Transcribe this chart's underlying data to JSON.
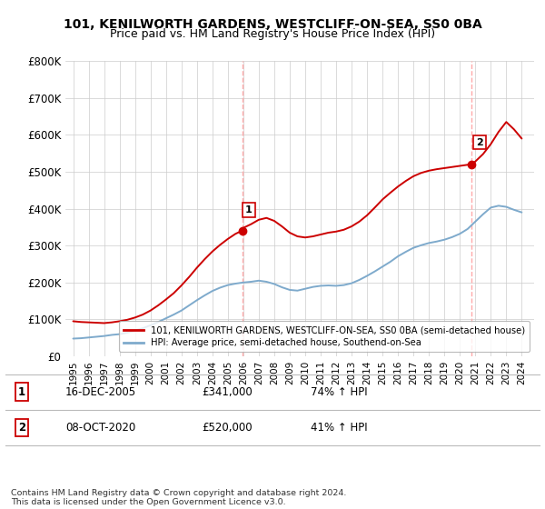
{
  "title": "101, KENILWORTH GARDENS, WESTCLIFF-ON-SEA, SS0 0BA",
  "subtitle": "Price paid vs. HM Land Registry's House Price Index (HPI)",
  "legend_line1": "101, KENILWORTH GARDENS, WESTCLIFF-ON-SEA, SS0 0BA (semi-detached house)",
  "legend_line2": "HPI: Average price, semi-detached house, Southend-on-Sea",
  "footnote": "Contains HM Land Registry data © Crown copyright and database right 2024.\nThis data is licensed under the Open Government Licence v3.0.",
  "annotation1_date": "16-DEC-2005",
  "annotation1_price": "£341,000",
  "annotation1_hpi": "74% ↑ HPI",
  "annotation2_date": "08-OCT-2020",
  "annotation2_price": "£520,000",
  "annotation2_hpi": "41% ↑ HPI",
  "red_color": "#cc0000",
  "blue_color": "#7eaacc",
  "vline_color": "#ffaaaa",
  "grid_color": "#cccccc",
  "ylim": [
    0,
    800000
  ],
  "yticks": [
    0,
    100000,
    200000,
    300000,
    400000,
    500000,
    600000,
    700000,
    800000
  ],
  "ytick_labels": [
    "£0",
    "£100K",
    "£200K",
    "£300K",
    "£400K",
    "£500K",
    "£600K",
    "£700K",
    "£800K"
  ],
  "hpi_x": [
    1995.0,
    1995.5,
    1996.0,
    1996.5,
    1997.0,
    1997.5,
    1998.0,
    1998.5,
    1999.0,
    1999.5,
    2000.0,
    2000.5,
    2001.0,
    2001.5,
    2002.0,
    2002.5,
    2003.0,
    2003.5,
    2004.0,
    2004.5,
    2005.0,
    2005.5,
    2006.0,
    2006.5,
    2007.0,
    2007.5,
    2008.0,
    2008.5,
    2009.0,
    2009.5,
    2010.0,
    2010.5,
    2011.0,
    2011.5,
    2012.0,
    2012.5,
    2013.0,
    2013.5,
    2014.0,
    2014.5,
    2015.0,
    2015.5,
    2016.0,
    2016.5,
    2017.0,
    2017.5,
    2018.0,
    2018.5,
    2019.0,
    2019.5,
    2020.0,
    2020.5,
    2021.0,
    2021.5,
    2022.0,
    2022.5,
    2023.0,
    2023.5,
    2024.0
  ],
  "hpi_y": [
    48000,
    49000,
    51000,
    53000,
    55000,
    58000,
    60000,
    64000,
    70000,
    76000,
    84000,
    93000,
    103000,
    113000,
    124000,
    138000,
    152000,
    165000,
    177000,
    186000,
    193000,
    197000,
    200000,
    202000,
    205000,
    202000,
    196000,
    187000,
    180000,
    178000,
    183000,
    188000,
    191000,
    192000,
    191000,
    193000,
    198000,
    207000,
    218000,
    230000,
    243000,
    256000,
    271000,
    283000,
    294000,
    301000,
    307000,
    311000,
    316000,
    323000,
    332000,
    345000,
    365000,
    385000,
    403000,
    408000,
    405000,
    397000,
    390000
  ],
  "red_x": [
    1995.0,
    1995.5,
    1996.0,
    1996.5,
    1997.0,
    1997.5,
    1998.0,
    1998.5,
    1999.0,
    1999.5,
    2000.0,
    2000.5,
    2001.0,
    2001.5,
    2002.0,
    2002.5,
    2003.0,
    2003.5,
    2004.0,
    2004.5,
    2005.0,
    2005.5,
    2005.96,
    2006.0,
    2006.5,
    2007.0,
    2007.5,
    2008.0,
    2008.5,
    2009.0,
    2009.5,
    2010.0,
    2010.5,
    2011.0,
    2011.5,
    2012.0,
    2012.5,
    2013.0,
    2013.5,
    2014.0,
    2014.5,
    2015.0,
    2015.5,
    2016.0,
    2016.5,
    2017.0,
    2017.5,
    2018.0,
    2018.5,
    2019.0,
    2019.5,
    2020.0,
    2020.5,
    2020.77,
    2021.0,
    2021.5,
    2022.0,
    2022.5,
    2023.0,
    2023.5,
    2024.0
  ],
  "red_y": [
    95000,
    93000,
    92000,
    91000,
    90000,
    92000,
    95000,
    99000,
    105000,
    113000,
    124000,
    138000,
    154000,
    171000,
    192000,
    215000,
    240000,
    263000,
    284000,
    302000,
    318000,
    332000,
    341000,
    348000,
    358000,
    370000,
    375000,
    367000,
    352000,
    335000,
    325000,
    322000,
    325000,
    330000,
    335000,
    338000,
    343000,
    352000,
    365000,
    382000,
    403000,
    425000,
    443000,
    460000,
    475000,
    488000,
    497000,
    503000,
    507000,
    510000,
    513000,
    516000,
    519000,
    520000,
    528000,
    548000,
    575000,
    608000,
    635000,
    615000,
    590000
  ],
  "sale1_x": 2005.96,
  "sale1_y": 341000,
  "sale2_x": 2020.77,
  "sale2_y": 520000,
  "xlim": [
    1994.5,
    2024.8
  ],
  "xticks": [
    1995,
    1996,
    1997,
    1998,
    1999,
    2000,
    2001,
    2002,
    2003,
    2004,
    2005,
    2006,
    2007,
    2008,
    2009,
    2010,
    2011,
    2012,
    2013,
    2014,
    2015,
    2016,
    2017,
    2018,
    2019,
    2020,
    2021,
    2022,
    2023,
    2024
  ]
}
